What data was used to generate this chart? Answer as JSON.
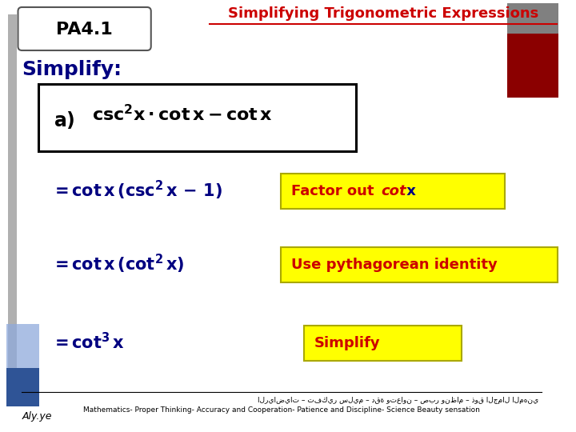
{
  "title": "Simplifying Trigonometric Expressions",
  "title_color": "#cc0000",
  "pa_label": "PA4.1",
  "main_bg": "#ffffff",
  "simplify_label": "Simplify:",
  "simplify_color": "#000080",
  "hint_bg": "#ffff00",
  "hint_border": "#aaa800",
  "math_color": "#000080",
  "hint_text_color": "#cc0000",
  "hint_x_color": "#000080",
  "footer_arabic": "الرياضيات – تفكير سليم – دقة وتعاون – صبر ونظام – ذوق الجمال المهني",
  "footer_english": "Mathematics- Proper Thinking- Accuracy and Cooperation- Patience and Discipline- Science Beauty sensation",
  "left_bar_color": "#b0b0b0",
  "deco_rect1_color": "#8faadc",
  "deco_rect2_color": "#2f5496",
  "deco_top_right1": "#808080",
  "deco_top_right2": "#8b0000",
  "signature": "Aly.ye"
}
